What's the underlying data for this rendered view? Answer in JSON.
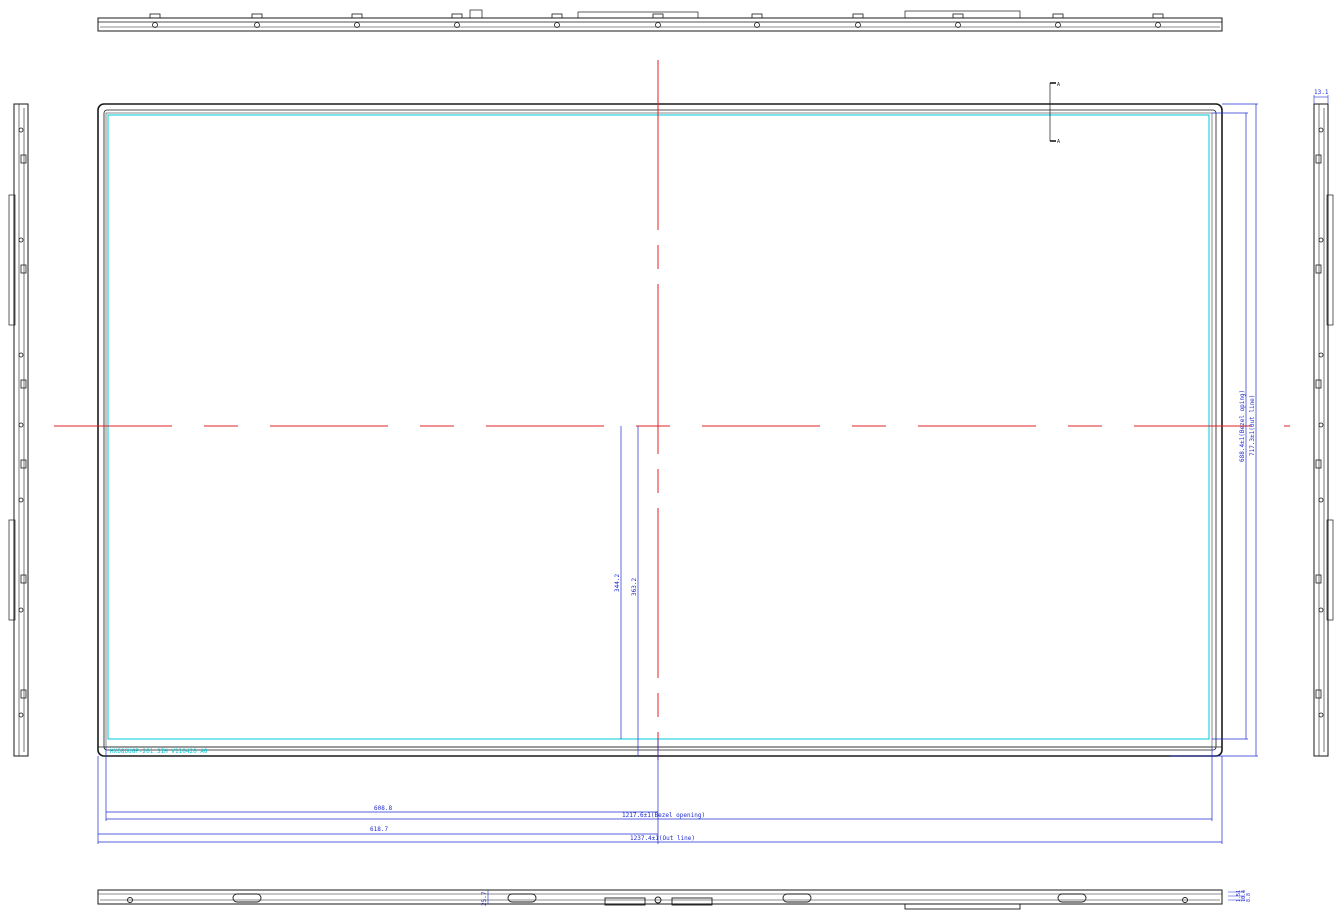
{
  "dimensions": {
    "half_open_width": "608.8",
    "bezel_opening_width": "1217.6±1(Bezel opening)",
    "half_outline_width": "618.7",
    "outline_width": "1237.4±1(Out line)",
    "half_open_height": "344.2",
    "half_outline_height": "363.2",
    "bezel_opening_height": "688.4±1(Bezel oping)",
    "outline_height": "717.3±1(Out line)",
    "side_thickness": "13.1",
    "bottom_thickness": "25.7",
    "bottom_right_dims": [
      "1.51",
      "10.4",
      "8.8"
    ]
  },
  "section_marks": {
    "top": "A",
    "bottom": "A"
  },
  "panel_label": "HX686UGP-201 SIH V110420 A0",
  "colors": {
    "outline": "#1a1a1a",
    "dimension": "#1f2bd1",
    "centerline": "#e02020",
    "active_area": "#00c8d8"
  }
}
